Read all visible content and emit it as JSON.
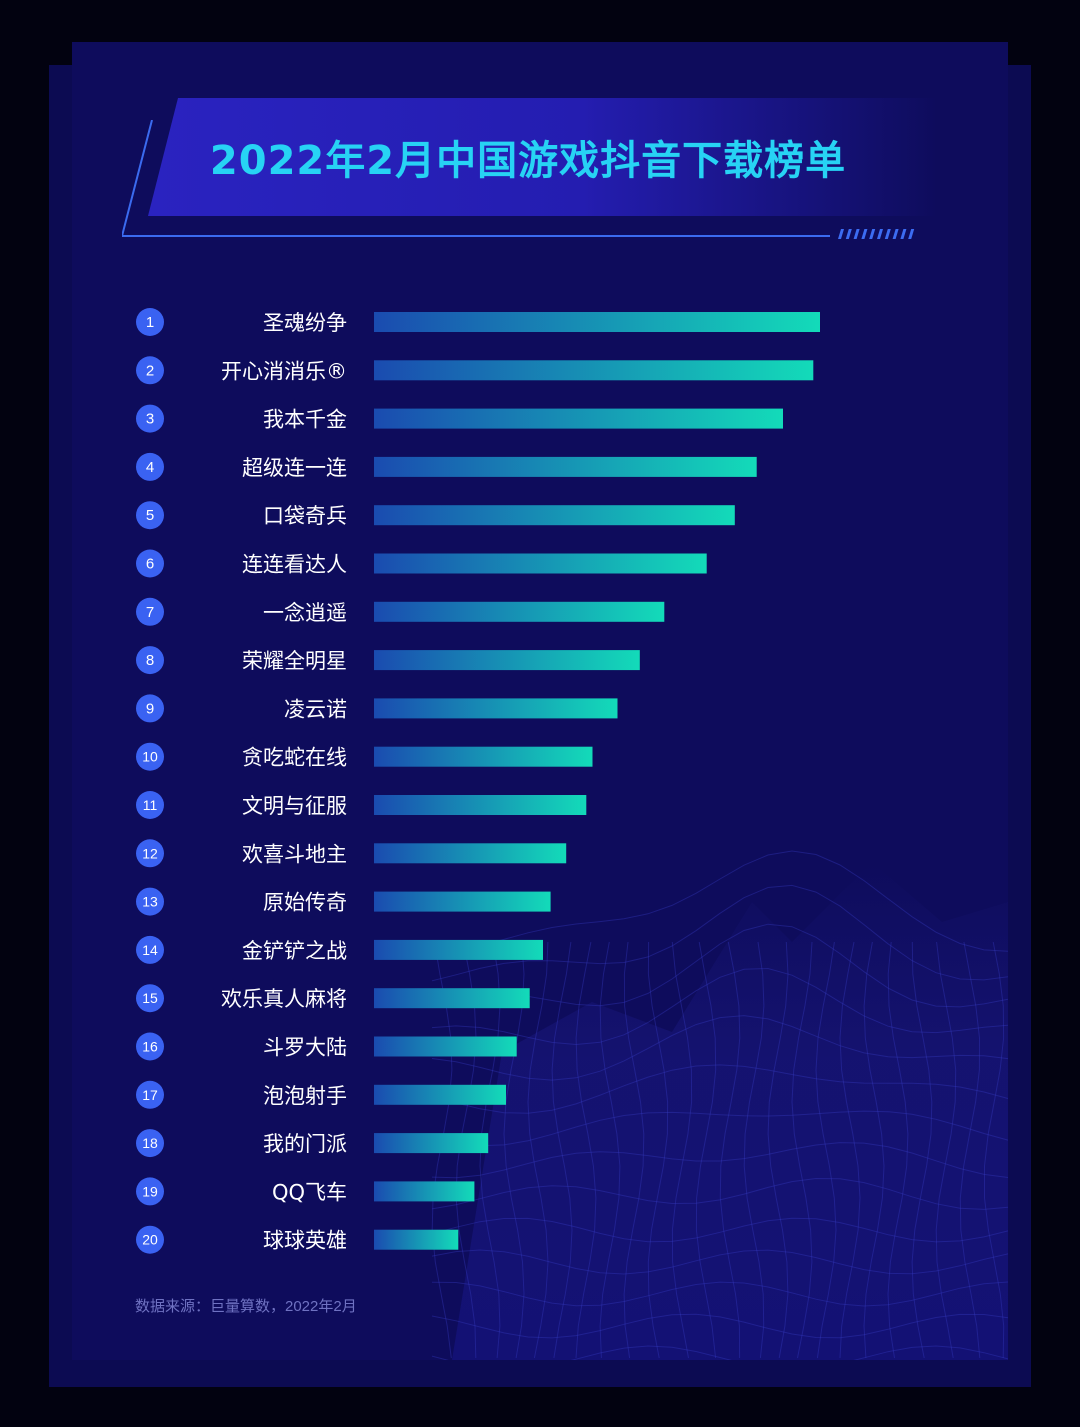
{
  "chart_data": {
    "type": "bar",
    "orientation": "horizontal",
    "title": "2022年2月中国游戏抖音下载榜单",
    "ranks": [
      "1",
      "2",
      "3",
      "4",
      "5",
      "6",
      "7",
      "8",
      "9",
      "10",
      "11",
      "12",
      "13",
      "14",
      "15",
      "16",
      "17",
      "18",
      "19",
      "20"
    ],
    "categories": [
      "圣魂纷争",
      "开心消消乐®",
      "我本千金",
      "超级连一连",
      "口袋奇兵",
      "连连看达人",
      "一念逍遥",
      "荣耀全明星",
      "凌云诺",
      "贪吃蛇在线",
      "文明与征服",
      "欢喜斗地主",
      "原始传奇",
      "金铲铲之战",
      "欢乐真人麻将",
      "斗罗大陆",
      "泡泡射手",
      "我的门派",
      "QQ飞车",
      "球球英雄"
    ],
    "values": [
      100,
      98.5,
      91.7,
      85.8,
      80.9,
      74.6,
      65.1,
      59.6,
      54.6,
      49.0,
      47.6,
      43.1,
      39.6,
      37.9,
      34.9,
      32.0,
      29.6,
      25.6,
      22.5,
      18.9
    ],
    "xlim": [
      0,
      100
    ],
    "grid": false,
    "legend": "none",
    "colors": {
      "bar_start": "#1a4bb0",
      "bar_end": "#13dbb9",
      "badge": "#3a62f2"
    }
  },
  "footnote": "数据来源：巨量算数，2022年2月"
}
